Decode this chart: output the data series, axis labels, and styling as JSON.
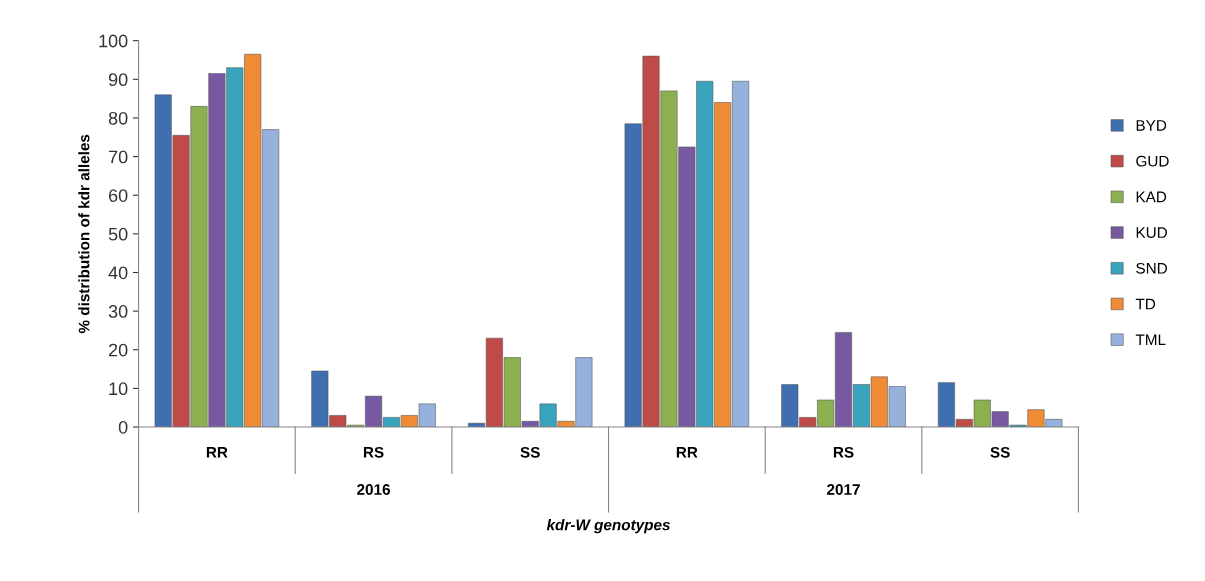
{
  "chart_data": {
    "type": "bar",
    "xlabel": "kdr-W genotypes",
    "ylabel": "% distribution of kdr alleles",
    "categories": [
      "RR",
      "RS",
      "SS",
      "RR",
      "RS",
      "SS"
    ],
    "annotations": [
      "2016",
      "2017"
    ],
    "series": [
      {
        "name": "BYD",
        "color": "#3f6fb0",
        "values": [
          86,
          14.5,
          1,
          78.5,
          11,
          11.5
        ]
      },
      {
        "name": "GUD",
        "color": "#be4b48",
        "values": [
          75.5,
          3,
          23,
          96,
          2.5,
          2
        ]
      },
      {
        "name": "KAD",
        "color": "#8cb04f",
        "values": [
          83,
          0.5,
          18,
          87,
          7,
          7
        ]
      },
      {
        "name": "KUD",
        "color": "#7659a0",
        "values": [
          91.5,
          8,
          1.5,
          72.5,
          24.5,
          4
        ]
      },
      {
        "name": "SND",
        "color": "#3aa3bd",
        "values": [
          93,
          2.5,
          6,
          89.5,
          11,
          0.5
        ]
      },
      {
        "name": "TD",
        "color": "#ef8a35",
        "values": [
          96.5,
          3,
          1.5,
          84,
          13,
          4.5
        ]
      },
      {
        "name": "TML",
        "color": "#95b1dc",
        "values": [
          77,
          6,
          18,
          89.5,
          10.5,
          2
        ]
      }
    ],
    "ylim": [
      0,
      100
    ],
    "yticks": [
      0,
      10,
      20,
      30,
      40,
      50,
      60,
      70,
      80,
      90,
      100
    ],
    "grid": false,
    "legend": "right"
  }
}
